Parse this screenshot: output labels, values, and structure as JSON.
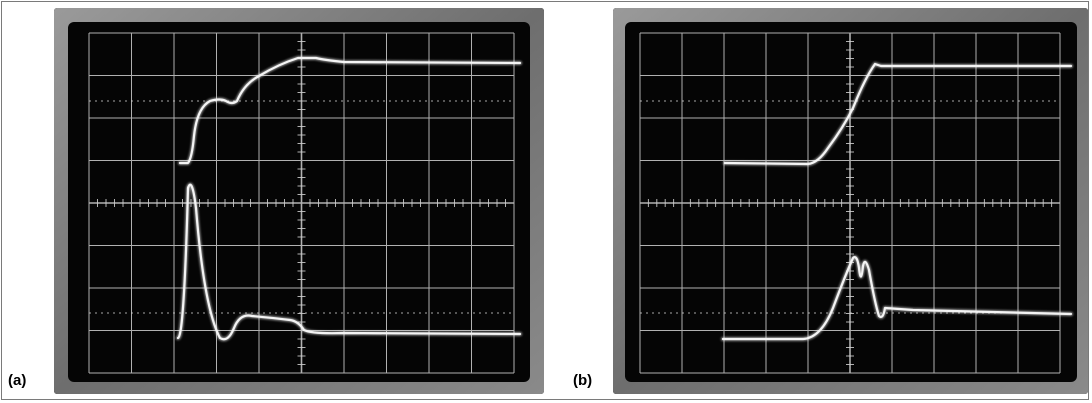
{
  "panels": [
    {
      "id": "a",
      "label": "(a)"
    },
    {
      "id": "b",
      "label": "(b)"
    }
  ],
  "colors": {
    "bezel": "#8c8c8c",
    "screen": "#0b0b0b",
    "grid": "#d8d8d8",
    "trace": "#f4f4f4"
  }
}
